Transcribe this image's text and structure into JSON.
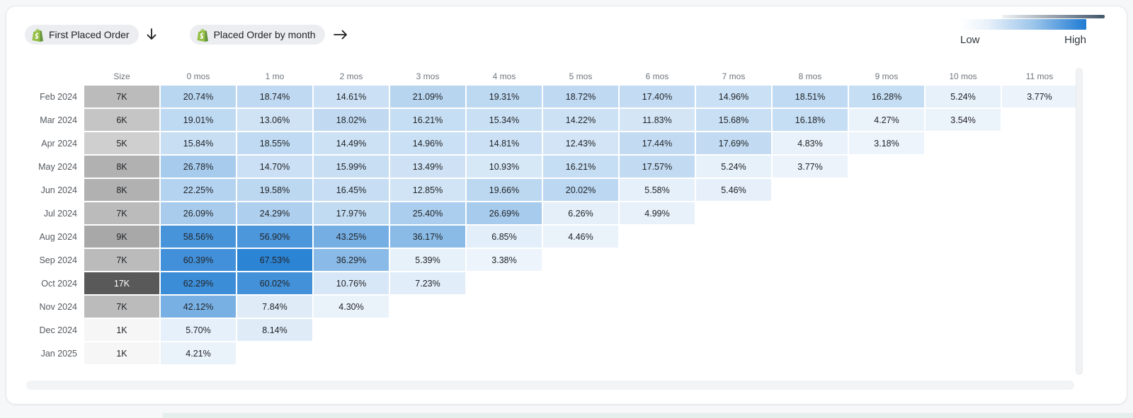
{
  "header": {
    "event_badges": [
      {
        "label": "First Placed Order",
        "icon": "shopify-bag-icon"
      },
      {
        "label": "Placed Order by month",
        "icon": "shopify-bag-icon"
      }
    ],
    "legend": {
      "low_label": "Low",
      "high_label": "High"
    }
  },
  "colors": {
    "heat_min": "#f7fafd",
    "heat_max": "#2b83d4",
    "size_min": "#f6f6f6",
    "size_max": "#595959",
    "shopify_green": "#95BF47",
    "pill_background": "#ebedf0",
    "legend_gradient_end": "#1e7bd4"
  },
  "chart_data": {
    "type": "heatmap",
    "title": "Cohort: First Placed Order → Placed Order by month",
    "columns": [
      "Size",
      "0 mos",
      "1 mo",
      "2 mos",
      "3 mos",
      "4 mos",
      "5 mos",
      "6 mos",
      "7 mos",
      "8 mos",
      "9 mos",
      "10 mos",
      "11 mos"
    ],
    "value_format": "percent",
    "legend": {
      "low": "Low",
      "high": "High",
      "position": "top-right"
    },
    "color_scale": {
      "min_color": "#f7fafd",
      "max_color": "#2b83d4",
      "domain": [
        0,
        68
      ]
    },
    "size_scale": {
      "min_color": "#f6f6f6",
      "max_color": "#595959",
      "domain": [
        1,
        17
      ],
      "light_text_threshold": 0.75
    },
    "rows": [
      {
        "label": "Feb 2024",
        "size": "7K",
        "values": [
          20.74,
          18.74,
          14.61,
          21.09,
          19.31,
          18.72,
          17.4,
          14.96,
          18.51,
          16.28,
          5.24,
          3.77
        ]
      },
      {
        "label": "Mar 2024",
        "size": "6K",
        "values": [
          19.01,
          13.06,
          18.02,
          16.21,
          15.34,
          14.22,
          11.83,
          15.68,
          16.18,
          4.27,
          3.54
        ]
      },
      {
        "label": "Apr 2024",
        "size": "5K",
        "values": [
          15.84,
          18.55,
          14.49,
          14.96,
          14.81,
          12.43,
          17.44,
          17.69,
          4.83,
          3.18
        ]
      },
      {
        "label": "May 2024",
        "size": "8K",
        "values": [
          26.78,
          14.7,
          15.99,
          13.49,
          10.93,
          16.21,
          17.57,
          5.24,
          3.77
        ]
      },
      {
        "label": "Jun 2024",
        "size": "8K",
        "values": [
          22.25,
          19.58,
          16.45,
          12.85,
          19.66,
          20.02,
          5.58,
          5.46
        ]
      },
      {
        "label": "Jul 2024",
        "size": "7K",
        "values": [
          26.09,
          24.29,
          17.97,
          25.4,
          26.69,
          6.26,
          4.99
        ]
      },
      {
        "label": "Aug 2024",
        "size": "9K",
        "values": [
          58.56,
          56.9,
          43.25,
          36.17,
          6.85,
          4.46
        ]
      },
      {
        "label": "Sep 2024",
        "size": "7K",
        "values": [
          60.39,
          67.53,
          36.29,
          5.39,
          3.38
        ]
      },
      {
        "label": "Oct 2024",
        "size": "17K",
        "values": [
          62.29,
          60.02,
          10.76,
          7.23
        ]
      },
      {
        "label": "Nov 2024",
        "size": "7K",
        "values": [
          42.12,
          7.84,
          4.3
        ]
      },
      {
        "label": "Dec 2024",
        "size": "1K",
        "values": [
          5.7,
          8.14
        ]
      },
      {
        "label": "Jan 2025",
        "size": "1K",
        "values": [
          4.21
        ]
      }
    ]
  }
}
